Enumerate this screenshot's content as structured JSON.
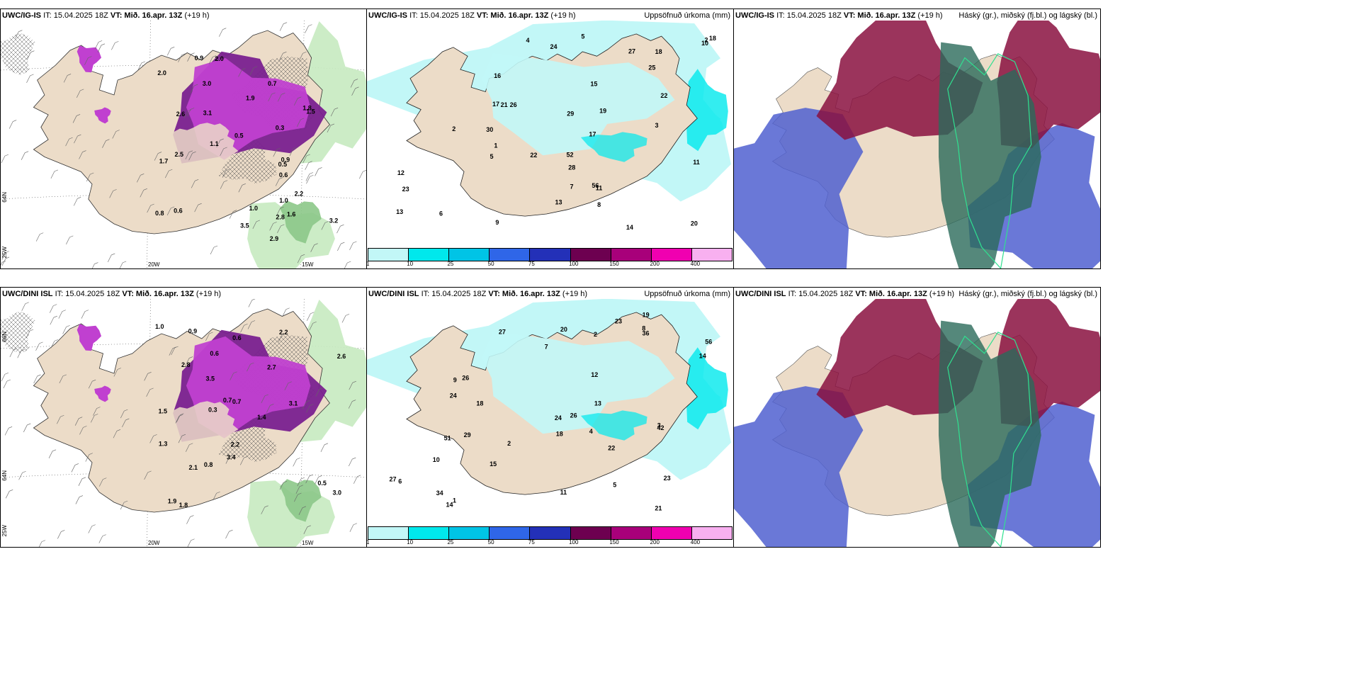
{
  "panels": [
    {
      "id": "r1c1",
      "model": "UWC/IG-IS",
      "it": "IT: 15.04.2025 18Z",
      "vt_prefix": "VT:",
      "vt": "Mið. 16.apr. 13Z",
      "lead": "(+19 h)",
      "right_title": "",
      "type": "snow"
    },
    {
      "id": "r1c2",
      "model": "UWC/IG-IS",
      "it": "IT: 15.04.2025 18Z",
      "vt_prefix": "VT:",
      "vt": "Mið. 16.apr. 13Z",
      "lead": "(+19 h)",
      "right_title": "Uppsöfnuð úrkoma (mm)",
      "type": "precip"
    },
    {
      "id": "r1c3",
      "model": "UWC/IG-IS",
      "it": "IT: 15.04.2025 18Z",
      "vt_prefix": "VT:",
      "vt": "Mið. 16.apr. 13Z",
      "lead": "(+19 h)",
      "right_title": "Háský (gr.), miðský (fj.bl.) og lágský (bl.)",
      "type": "clouds"
    },
    {
      "id": "r2c1",
      "model": "UWC/DINI ISL",
      "it": "IT: 15.04.2025 18Z",
      "vt_prefix": "VT:",
      "vt": "Mið. 16.apr. 13Z",
      "lead": "(+19 h)",
      "right_title": "",
      "type": "snow"
    },
    {
      "id": "r2c2",
      "model": "UWC/DINI ISL",
      "it": "IT: 15.04.2025 18Z",
      "vt_prefix": "VT:",
      "vt": "Mið. 16.apr. 13Z",
      "lead": "(+19 h)",
      "right_title": "Uppsöfnuð úrkoma (mm)",
      "type": "precip"
    },
    {
      "id": "r2c3",
      "model": "UWC/DINI ISL",
      "it": "IT: 15.04.2025 18Z",
      "vt_prefix": "VT:",
      "vt": "Mið. 16.apr. 13Z",
      "lead": "(+19 h)",
      "right_title": "Háský (gr.), miðský (fj.bl.) og lágský (bl.)",
      "type": "clouds"
    }
  ],
  "axes": {
    "lon1": "20W",
    "lon2": "15W",
    "lat_a": "66N",
    "lat_b": "64N",
    "lon_left": "25W"
  },
  "precip_legend": {
    "labels": [
      "1",
      "10",
      "25",
      "50",
      "75",
      "100",
      "150",
      "200",
      "400"
    ],
    "colors": [
      "#c2f7f7",
      "#00e8ec",
      "#00c4e6",
      "#2f66e8",
      "#2330b8",
      "#6d0050",
      "#a8007a",
      "#f000b0",
      "#f8b0f0"
    ]
  },
  "colors": {
    "land": "#ecdcc8",
    "snow_purple": "#c040d0",
    "snow_dark": "#7a2090",
    "green_light": "#c6eac0",
    "green_dark": "#3c8a40",
    "precip_light": "#c2f7f7",
    "precip_mid": "#00e8ec",
    "cloud_high": "#2a6a5a",
    "cloud_mid": "#8a1040",
    "cloud_low": "#5060d0"
  },
  "labels": {
    "r1c1": [
      "0.5",
      "1.0",
      "1.5",
      "1.9",
      "1.6",
      "0.9",
      "2.0",
      "1.8",
      "3.1",
      "3.0",
      "2.5",
      "1.1",
      "2.9",
      "3.2",
      "2.8",
      "2.2",
      "0.6",
      "1.0",
      "0.8",
      "0.7",
      "0.9",
      "0.5",
      "0.6",
      "1.7",
      "2.6",
      "3.5",
      "2.0",
      "0.3"
    ],
    "r2c1": [
      "0.3",
      "1.5",
      "1.4",
      "2.1",
      "1.8",
      "0.7",
      "1.9",
      "2.2",
      "3.1",
      "3.5",
      "2.6",
      "3.0",
      "2.8",
      "2.2",
      "0.6",
      "1.0",
      "0.8",
      "0.7",
      "0.9",
      "0.5",
      "0.6",
      "1.3",
      "2.7",
      "3.4"
    ],
    "r1c2": [
      "2",
      "6",
      "12",
      "26",
      "23",
      "22",
      "28",
      "18",
      "24",
      "22",
      "25",
      "29",
      "52",
      "17",
      "20",
      "13",
      "14",
      "10",
      "17",
      "21",
      "18",
      "11",
      "13",
      "16",
      "4",
      "7",
      "9",
      "5",
      "3",
      "1",
      "8",
      "15",
      "19",
      "27",
      "30",
      "56",
      "11",
      "2",
      "5"
    ],
    "r2c2": [
      "1",
      "3",
      "2",
      "8",
      "14",
      "20",
      "27",
      "24",
      "29",
      "26",
      "23",
      "42",
      "36",
      "18",
      "12",
      "15",
      "10",
      "56",
      "51",
      "19",
      "24",
      "23",
      "18",
      "13",
      "9",
      "5",
      "4",
      "6",
      "2",
      "7",
      "11",
      "22",
      "26",
      "27",
      "34",
      "14",
      "21"
    ]
  }
}
